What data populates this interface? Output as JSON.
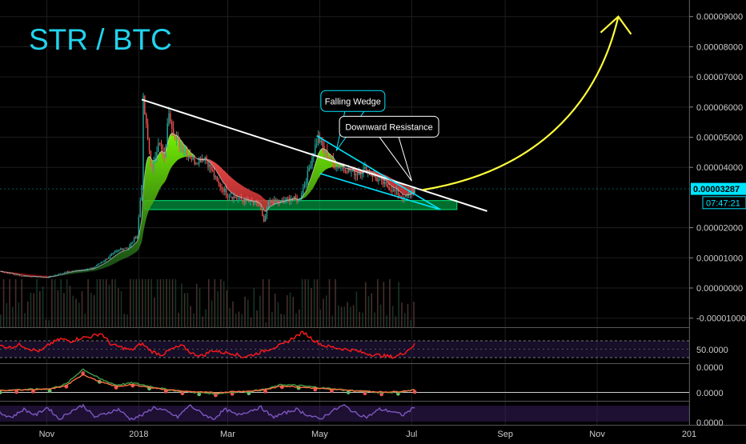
{
  "chart_data": {
    "type": "line",
    "title": "STR / BTC",
    "colors": {
      "background": "#000000",
      "title": "#22d3ee",
      "price_up": "#26a69a",
      "price_down": "#ef5350",
      "ribbon_green": "#4caf50",
      "ribbon_red": "#b71c1c",
      "wedge": "#00e5ff",
      "resistance": "#ffffff",
      "projection": "#ffff3b",
      "support_zone": "#00e676",
      "rsi": "#ff1a1a",
      "stoch": "#7e57c2",
      "axis_text": "#cccccc"
    },
    "x_axis": {
      "unit": "month",
      "ticks": [
        {
          "label": "Nov",
          "x": "2017-11-01"
        },
        {
          "label": "2018",
          "x": "2018-01-01"
        },
        {
          "label": "Mar",
          "x": "2018-03-01"
        },
        {
          "label": "May",
          "x": "2018-05-01"
        },
        {
          "label": "Jul",
          "x": "2018-07-01"
        },
        {
          "label": "Sep",
          "x": "2018-09-01"
        },
        {
          "label": "Nov",
          "x": "2018-11-01"
        },
        {
          "label": "201",
          "x": "2019-01-01"
        }
      ],
      "range": [
        "2017-10-01",
        "2019-01-01"
      ]
    },
    "price_axis": {
      "ticks": [
        "0.00009000",
        "0.00008000",
        "0.00007000",
        "0.00006000",
        "0.00005000",
        "0.00004000",
        "0.00002000",
        "0.00001000",
        "0.00000000",
        "-0.00001000"
      ],
      "ylim": [
        -1.3e-05,
        9.55e-05
      ],
      "current_price_label": "0.00003287",
      "current_price": 3.287e-05,
      "countdown_label": "07:47:21",
      "countdown_anchor": 2.83e-05
    },
    "price_series": {
      "name": "STR/BTC",
      "points": [
        [
          "2017-10-01",
          5.5e-06
        ],
        [
          "2017-10-15",
          4e-06
        ],
        [
          "2017-11-01",
          3.5e-06
        ],
        [
          "2017-11-15",
          5.5e-06
        ],
        [
          "2017-12-01",
          6.5e-06
        ],
        [
          "2017-12-10",
          9.5e-06
        ],
        [
          "2017-12-20",
          1.3e-05
        ],
        [
          "2017-12-25",
          1.35e-05
        ],
        [
          "2017-12-31",
          1.75e-05
        ],
        [
          "2018-01-03",
          3.5e-05
        ],
        [
          "2018-01-04",
          6.2e-05
        ],
        [
          "2018-01-07",
          4.9e-05
        ],
        [
          "2018-01-10",
          3.85e-05
        ],
        [
          "2018-01-14",
          4.9e-05
        ],
        [
          "2018-01-18",
          4.25e-05
        ],
        [
          "2018-01-21",
          5.9e-05
        ],
        [
          "2018-01-25",
          4.95e-05
        ],
        [
          "2018-02-01",
          4.55e-05
        ],
        [
          "2018-02-07",
          4.2e-05
        ],
        [
          "2018-02-14",
          4.35e-05
        ],
        [
          "2018-02-22",
          3.5e-05
        ],
        [
          "2018-03-01",
          3.1e-05
        ],
        [
          "2018-03-08",
          2.95e-05
        ],
        [
          "2018-03-15",
          2.85e-05
        ],
        [
          "2018-03-22",
          2.75e-05
        ],
        [
          "2018-03-25",
          2.15e-05
        ],
        [
          "2018-03-28",
          2.85e-05
        ],
        [
          "2018-04-05",
          2.85e-05
        ],
        [
          "2018-04-12",
          3e-05
        ],
        [
          "2018-04-17",
          2.9e-05
        ],
        [
          "2018-04-22",
          3.6e-05
        ],
        [
          "2018-04-27",
          4.55e-05
        ],
        [
          "2018-04-30",
          5e-05
        ],
        [
          "2018-05-04",
          4.55e-05
        ],
        [
          "2018-05-10",
          4.1e-05
        ],
        [
          "2018-05-18",
          3.95e-05
        ],
        [
          "2018-05-25",
          3.8e-05
        ],
        [
          "2018-06-01",
          3.95e-05
        ],
        [
          "2018-06-08",
          3.6e-05
        ],
        [
          "2018-06-14",
          3.4e-05
        ],
        [
          "2018-06-20",
          3.2e-05
        ],
        [
          "2018-06-26",
          2.95e-05
        ],
        [
          "2018-06-30",
          3.15e-05
        ],
        [
          "2018-07-03",
          3.287e-05
        ]
      ]
    },
    "annotations": [
      {
        "kind": "label",
        "text": "Falling Wedge",
        "x": "2018-05-23",
        "y": 6.2e-05,
        "color": "#00e5ff"
      },
      {
        "kind": "label",
        "text": "Downward Resistance",
        "x": "2018-06-16",
        "y": 5.35e-05,
        "color": "#ffffff"
      }
    ],
    "trendlines": {
      "resistance": [
        [
          "2018-01-03",
          6.25e-05
        ],
        [
          "2018-08-20",
          2.55e-05
        ]
      ],
      "wedge_upper": [
        [
          "2018-04-29",
          5.05e-05
        ],
        [
          "2018-07-20",
          2.6e-05
        ]
      ],
      "wedge_lower": [
        [
          "2018-05-01",
          3.8e-05
        ],
        [
          "2018-07-20",
          2.6e-05
        ]
      ],
      "projection": [
        [
          "2018-07-08",
          3.25e-05
        ],
        [
          "2018-09-20",
          3.85e-05
        ],
        [
          "2018-11-01",
          6e-05
        ],
        [
          "2018-11-15",
          9e-05
        ]
      ],
      "support_zone": {
        "from": "2018-01-05",
        "to": "2018-07-31",
        "low": 2.6e-05,
        "high": 2.9e-05
      }
    },
    "rsi": {
      "tick_label": "50.0000",
      "values": [
        58,
        55,
        60,
        52,
        48,
        62,
        70,
        66,
        72,
        74,
        80,
        60,
        55,
        50,
        62,
        48,
        42,
        52,
        58,
        44,
        40,
        50,
        46,
        45,
        38,
        42,
        48,
        55,
        60,
        72,
        82,
        68,
        58,
        55,
        52,
        50,
        45,
        42,
        40,
        38,
        46,
        60
      ]
    },
    "macd": {
      "tick_labels": [
        "0.0000",
        "0.0000"
      ],
      "values": [
        0,
        0.1,
        0.2,
        0.3,
        1.2,
        4.0,
        2.2,
        1.0,
        1.4,
        0.8,
        0.2,
        -0.2,
        -0.4,
        -0.6,
        -0.3,
        -0.2,
        0.2,
        1.1,
        0.9,
        0.6,
        0.3,
        0,
        -0.2,
        -0.4,
        -0.3,
        0.1
      ]
    },
    "stoch_rsi": {
      "tick_label": "0.0000",
      "values": [
        50,
        30,
        70,
        40,
        80,
        20,
        60,
        90,
        30,
        50,
        70,
        20,
        40,
        80,
        60,
        30,
        90,
        50,
        20,
        70,
        40,
        60,
        80,
        30,
        50,
        70,
        40,
        20,
        60,
        90,
        50,
        30,
        70,
        60,
        40,
        80
      ]
    }
  }
}
